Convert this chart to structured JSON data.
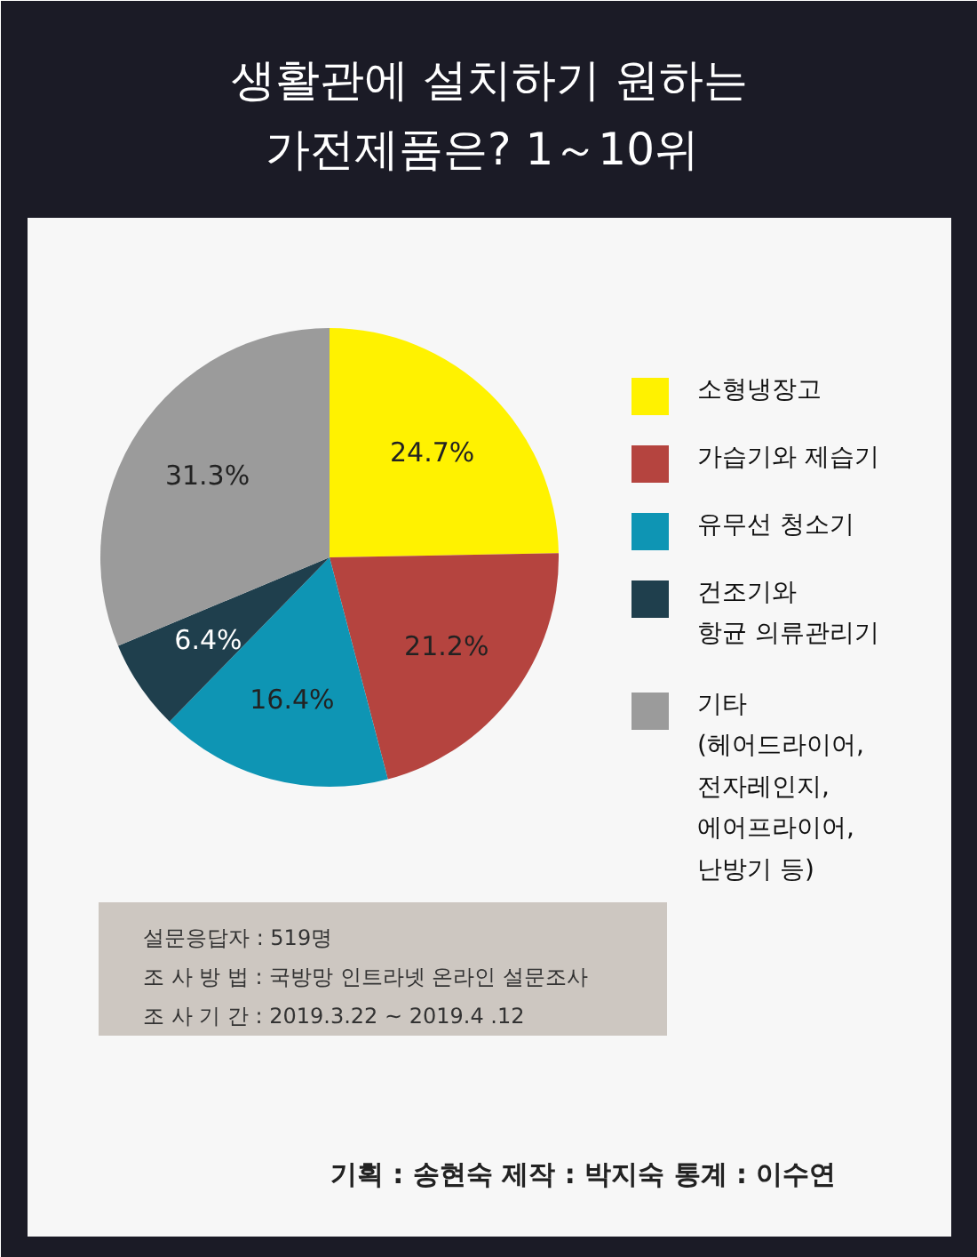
{
  "chart_data": {
    "type": "pie",
    "title": "생활관에 설치하기 원하는\n가전제품은?  1～10위",
    "categories": [
      "소형냉장고",
      "가습기와 제습기",
      "유무선 청소기",
      "건조기와\n항균 의류관리기",
      "기타\n(헤어드라이어,\n전자레인지,\n에어프라이어,\n난방기 등)"
    ],
    "values": [
      24.7,
      21.2,
      16.4,
      6.4,
      31.3
    ],
    "value_labels": [
      "24.7%",
      "21.2%",
      "16.4%",
      "6.4%",
      "31.3%"
    ],
    "colors": [
      "#fff200",
      "#b5443f",
      "#0e95b4",
      "#1f3f4d",
      "#9b9b9b"
    ],
    "legend": "right",
    "annotations": [
      "설문응답자 : 519명",
      "조 사  방 법  : 국방망 인트라넷 온라인 설문조사",
      "조 사  기 간  : 2019.3.22 ~ 2019.4 .12",
      "기획 : 송현숙     제작 : 박지숙     통계 : 이수연"
    ]
  }
}
